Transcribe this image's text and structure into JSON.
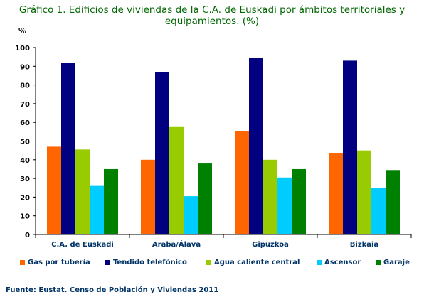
{
  "title_line1": "Gráfico 1. Edificios de viviendas de la C.A. de Euskadi por ámbitos territoriales y",
  "title_line2": "equipamientos. (%)",
  "unit_label": "%",
  "source": "Fuente: Eustat. Censo de Población y Viviendas 2011",
  "chart_data": {
    "type": "bar",
    "categories": [
      "C.A. de Euskadi",
      "Araba/Álava",
      "Gipuzkoa",
      "Bizkaia"
    ],
    "series": [
      {
        "name": "Gas por tubería",
        "color": "#ff6600",
        "values": [
          47,
          40,
          55.5,
          43.5
        ]
      },
      {
        "name": "Tendido telefónico",
        "color": "#000080",
        "values": [
          92,
          87,
          94.5,
          93
        ]
      },
      {
        "name": "Agua caliente central",
        "color": "#99cc00",
        "values": [
          45.5,
          57.5,
          40,
          45
        ]
      },
      {
        "name": "Ascensor",
        "color": "#00ccff",
        "values": [
          26,
          20.5,
          30.5,
          25
        ]
      },
      {
        "name": "Garaje",
        "color": "#008000",
        "values": [
          35,
          38,
          35,
          34.5
        ]
      }
    ],
    "ylim": [
      0,
      100
    ],
    "yticks": [
      0,
      10,
      20,
      30,
      40,
      50,
      60,
      70,
      80,
      90,
      100
    ],
    "grid": false,
    "legend_position": "bottom"
  }
}
